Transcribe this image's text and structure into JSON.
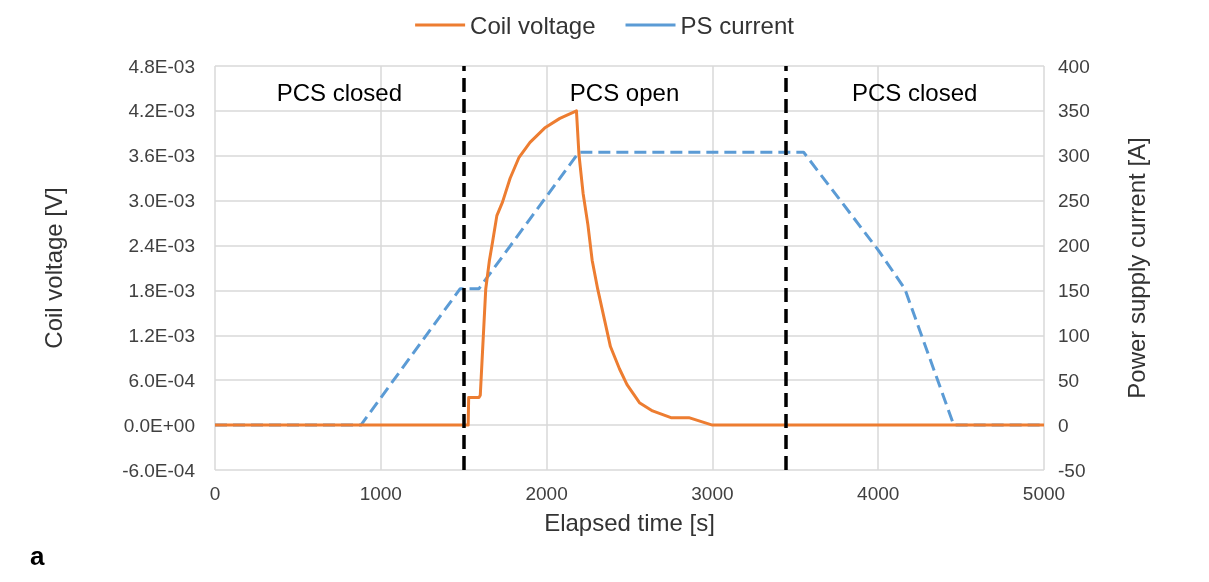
{
  "chart_data": {
    "type": "line",
    "xlabel": "Elapsed time [s]",
    "ylabel": "Coil voltage [V]",
    "y2label": "Power supply current [A]",
    "xlim": [
      0,
      5000
    ],
    "xticks": [
      0,
      {
        "value": 1000,
        "label": "1000"
      },
      {
        "value": 2000,
        "label": "2000"
      },
      {
        "value": 3000,
        "label": "3000"
      },
      {
        "value": 4000,
        "label": "4000"
      },
      {
        "value": 5000,
        "label": "5000"
      }
    ],
    "ylim": [
      -0.0006,
      0.0048
    ],
    "yticks": [
      {
        "value": -0.0006,
        "label": "-6.0E-04"
      },
      {
        "value": 0,
        "label": "0.0E+00"
      },
      {
        "value": 0.0006,
        "label": "6.0E-04"
      },
      {
        "value": 0.0012,
        "label": "1.2E-03"
      },
      {
        "value": 0.0018,
        "label": "1.8E-03"
      },
      {
        "value": 0.0024,
        "label": "2.4E-03"
      },
      {
        "value": 0.003,
        "label": "3.0E-03"
      },
      {
        "value": 0.0036,
        "label": "3.6E-03"
      },
      {
        "value": 0.0042,
        "label": "4.2E-03"
      },
      {
        "value": 0.0048,
        "label": "4.8E-03"
      }
    ],
    "y2lim": [
      -50,
      400
    ],
    "y2ticks": [
      -50,
      0,
      50,
      100,
      150,
      200,
      250,
      300,
      350,
      400
    ],
    "grid": true,
    "legend": "top",
    "marker": "none",
    "series": [
      {
        "name": "Coil voltage",
        "color": "#ed7d31",
        "line_style": "solid",
        "x": [
          0,
          1527,
          1530,
          1592,
          1600,
          1633,
          1655,
          1675,
          1700,
          1734,
          1780,
          1834,
          1900,
          1988,
          2080,
          2180,
          2195,
          2220,
          2249,
          2275,
          2308,
          2350,
          2385,
          2440,
          2485,
          2560,
          2639,
          2750,
          2858,
          3000,
          3154,
          5000
        ],
        "values": [
          0,
          0,
          0.00037,
          0.00037,
          0.0004,
          0.00182,
          0.0022,
          0.00246,
          0.0028,
          0.00298,
          0.0033,
          0.00358,
          0.00378,
          0.00397,
          0.0041,
          0.0042,
          0.00362,
          0.0031,
          0.00268,
          0.0022,
          0.00182,
          0.0014,
          0.00105,
          0.00075,
          0.00054,
          0.0003,
          0.00019,
          0.0001,
          0.0001,
          0,
          0,
          0
        ]
      },
      {
        "name": "PS current",
        "color": "#5b9bd5",
        "line_style": "dashed",
        "axis": "y2",
        "x": [
          0,
          880,
          1479,
          1592,
          2195,
          3550,
          4000,
          4160,
          4456,
          5000
        ],
        "values": [
          0,
          0,
          152,
          152,
          304,
          304,
          195,
          152,
          0,
          0
        ]
      }
    ],
    "ref_lines": [
      {
        "axis": "x",
        "value": 1500,
        "color": "#000000",
        "line_style": "dashed"
      },
      {
        "axis": "x",
        "value": 3440,
        "color": "#000000",
        "line_style": "dashed"
      }
    ],
    "annotations": [
      "PCS closed",
      "PCS open",
      "PCS closed",
      "a"
    ]
  }
}
